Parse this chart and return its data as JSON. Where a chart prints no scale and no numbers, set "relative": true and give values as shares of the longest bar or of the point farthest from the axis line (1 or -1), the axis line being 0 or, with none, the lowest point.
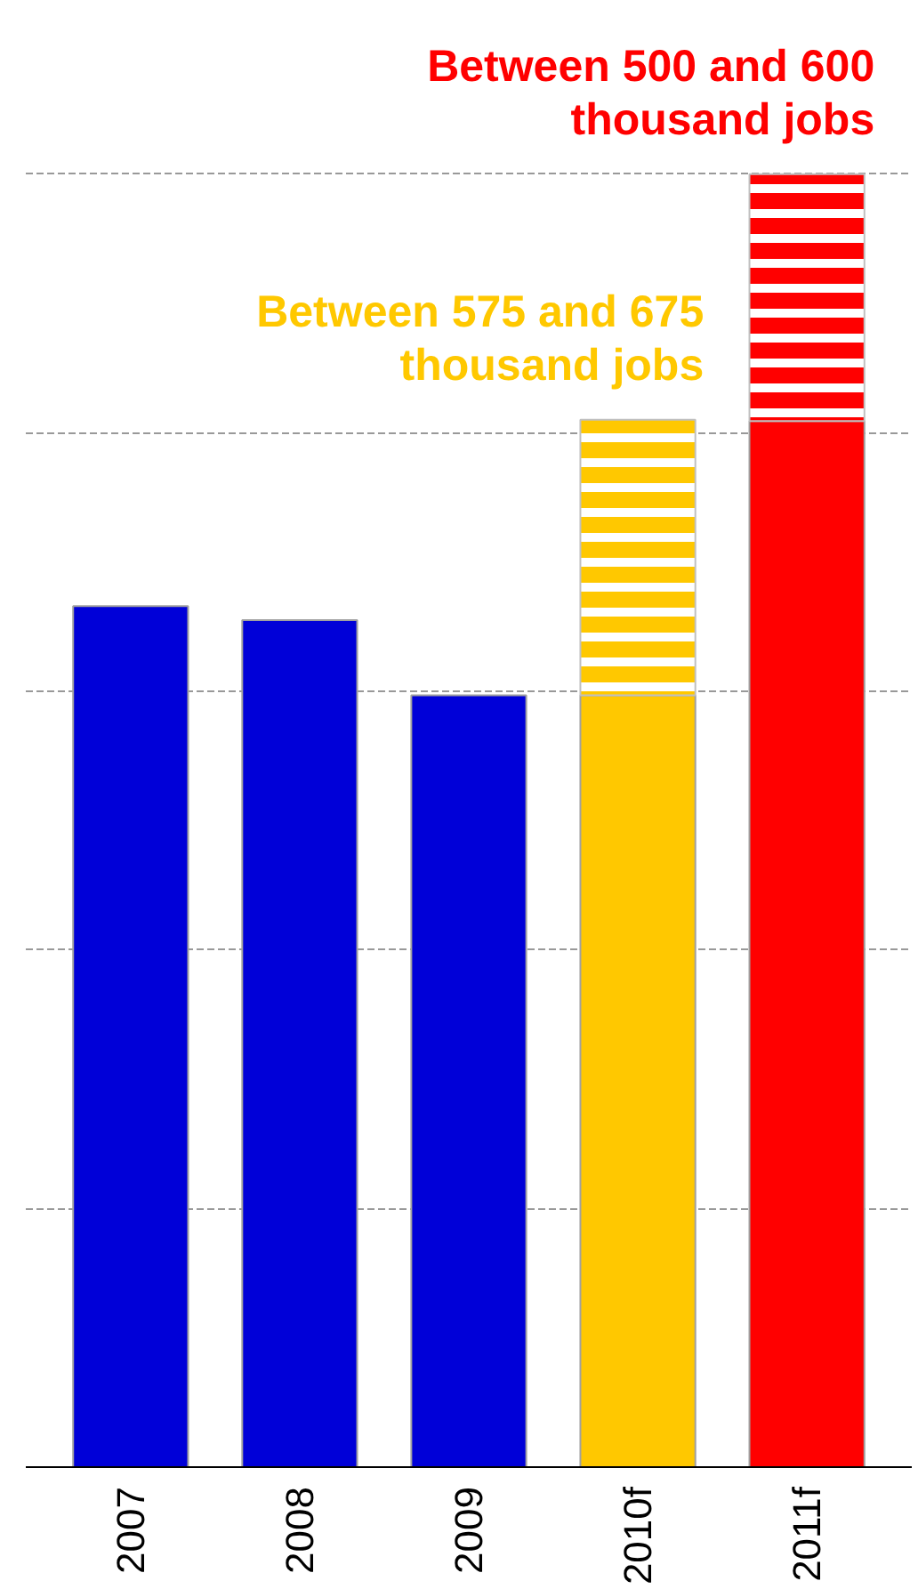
{
  "chart_data": {
    "type": "bar",
    "relative": true,
    "stacked": true,
    "grid": "y",
    "categories": [
      "2007",
      "2008",
      "2009",
      "2010f",
      "2011f"
    ],
    "series": [
      {
        "colors": [
          "#0000d8",
          "#0000d8",
          "#0000d8",
          "#ffc800",
          "#ff0000"
        ],
        "values": [
          0.666,
          0.655,
          0.597,
          0.597,
          0.809
        ]
      },
      {
        "colors": [
          null,
          null,
          null,
          "#ffc800",
          "#ff0000"
        ],
        "values": [
          null,
          null,
          null,
          0.213,
          0.191
        ]
      }
    ],
    "annotations": [
      "Between 500 and 600\nthousand jobs",
      "Between 575 and 675\nthousand jobs"
    ]
  }
}
